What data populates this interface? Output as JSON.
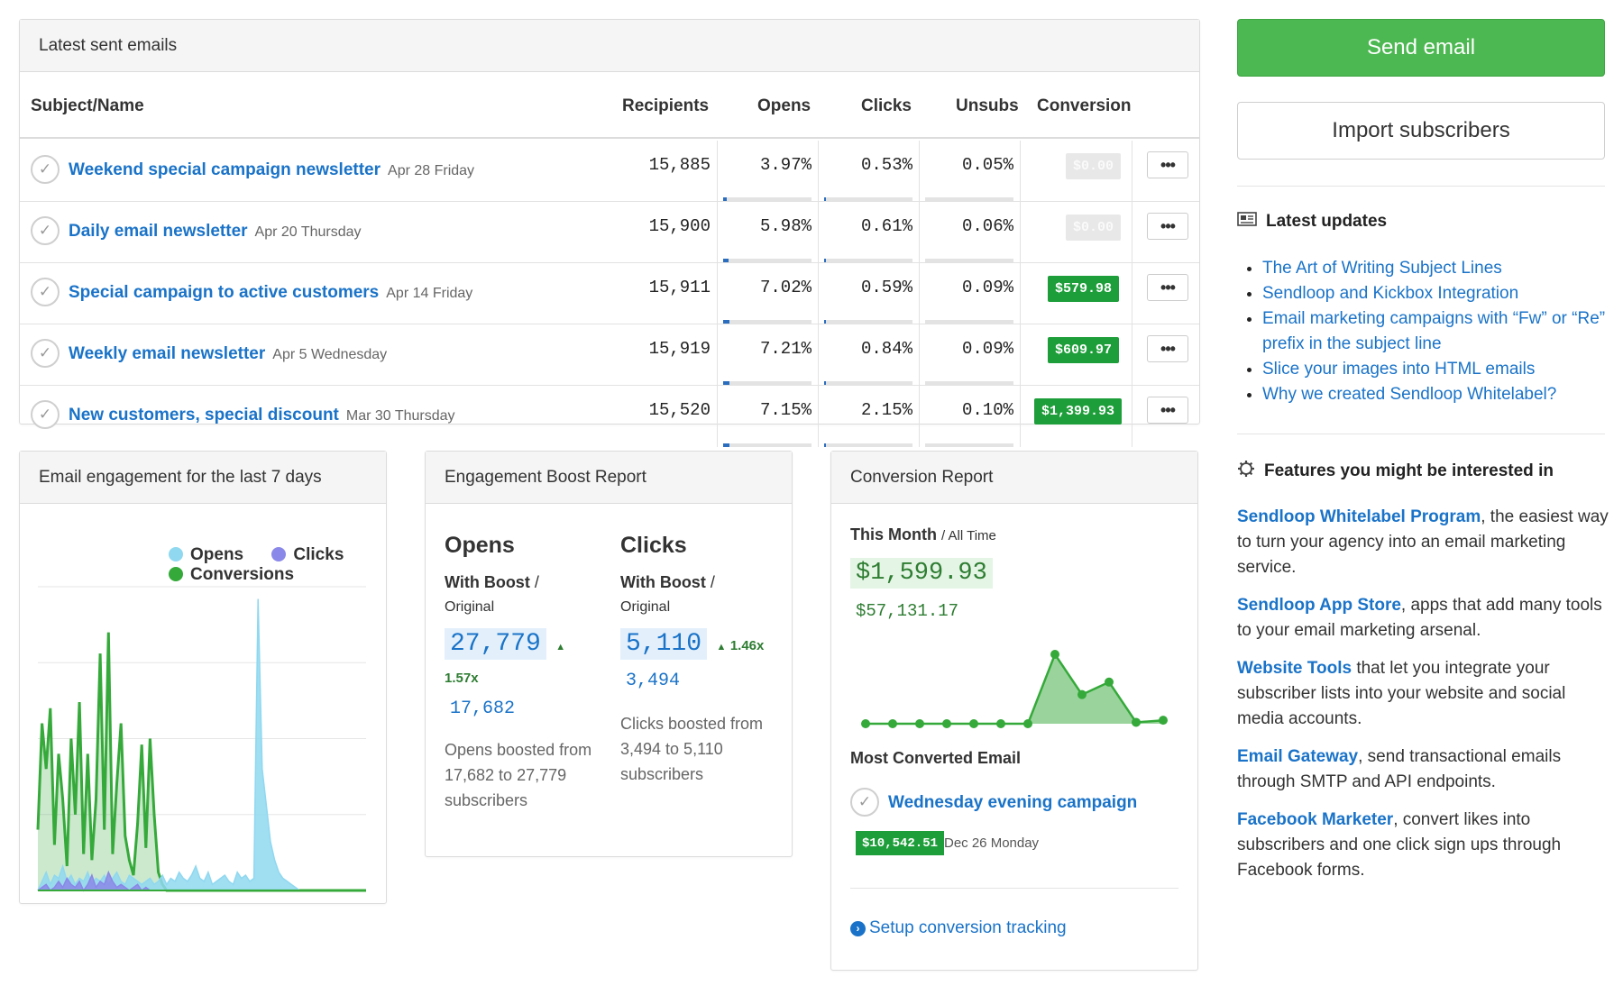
{
  "emails_panel": {
    "title": "Latest sent emails",
    "columns": [
      "Subject/Name",
      "Recipients",
      "Opens",
      "Clicks",
      "Unsubs",
      "Conversion"
    ],
    "rows": [
      {
        "subject": "Weekend special campaign newsletter",
        "date": "Apr 28 Friday",
        "recipients": "15,885",
        "opens": "3.97%",
        "clicks": "0.53%",
        "unsubs": "0.05%",
        "conversion": "$0.00",
        "opens_bar": 0.04,
        "clicks_bar": 0.005,
        "unsubs_bar": 0.0
      },
      {
        "subject": "Daily email newsletter",
        "date": "Apr 20 Thursday",
        "recipients": "15,900",
        "opens": "5.98%",
        "clicks": "0.61%",
        "unsubs": "0.06%",
        "conversion": "$0.00",
        "opens_bar": 0.06,
        "clicks_bar": 0.006,
        "unsubs_bar": 0.0
      },
      {
        "subject": "Special campaign to active customers",
        "date": "Apr 14 Friday",
        "recipients": "15,911",
        "opens": "7.02%",
        "clicks": "0.59%",
        "unsubs": "0.09%",
        "conversion": "$579.98",
        "opens_bar": 0.07,
        "clicks_bar": 0.006,
        "unsubs_bar": 0.0
      },
      {
        "subject": "Weekly email newsletter",
        "date": "Apr 5 Wednesday",
        "recipients": "15,919",
        "opens": "7.21%",
        "clicks": "0.84%",
        "unsubs": "0.09%",
        "conversion": "$609.97",
        "opens_bar": 0.07,
        "clicks_bar": 0.008,
        "unsubs_bar": 0.0
      },
      {
        "subject": "New customers, special discount",
        "date": "Mar 30 Thursday",
        "recipients": "15,520",
        "opens": "7.15%",
        "clicks": "2.15%",
        "unsubs": "0.10%",
        "conversion": "$1,399.93",
        "opens_bar": 0.07,
        "clicks_bar": 0.02,
        "unsubs_bar": 0.0
      }
    ],
    "more_label": "•••",
    "check_glyph": "✓"
  },
  "sidebar": {
    "send_label": "Send email",
    "import_label": "Import subscribers",
    "updates_title": "Latest updates",
    "updates": [
      "The Art of Writing Subject Lines",
      "Sendloop and Kickbox Integration",
      "Email marketing campaigns with “Fw” or “Re” prefix in the subject line",
      "Slice your images into HTML emails",
      "Why we created Sendloop Whitelabel?"
    ],
    "features_title": "Features you might be interested in",
    "features": [
      {
        "name": "Sendloop Whitelabel Program",
        "text": ", the easiest way to turn your agency into an email marketing service."
      },
      {
        "name": "Sendloop App Store",
        "text": ", apps that add many tools to your email marketing arsenal."
      },
      {
        "name": "Website Tools",
        "text": " that let you integrate your subscriber lists into your website and social media accounts."
      },
      {
        "name": "Email Gateway",
        "text": ", send transactional emails through SMTP and API endpoints."
      },
      {
        "name": "Facebook Marketer",
        "text": ", convert likes into subscribers and one click sign ups through Facebook forms."
      }
    ]
  },
  "engagement": {
    "title": "Email engagement for the last 7 days",
    "legend": {
      "opens": "Opens",
      "clicks": "Clicks",
      "conversions": "Conversions"
    },
    "colors": {
      "opens": "#8fd8f0",
      "clicks": "#8a88e8",
      "conversions": "#35a93a"
    }
  },
  "chart_data": {
    "type": "area",
    "series": [
      {
        "name": "Opens",
        "values": [
          0,
          3,
          6,
          2,
          5,
          4,
          8,
          3,
          5,
          2,
          4,
          3,
          6,
          2,
          4,
          3,
          5,
          2,
          4,
          6,
          3,
          2,
          5,
          4,
          3,
          2,
          3,
          4,
          2,
          3,
          5,
          2,
          4,
          3,
          6,
          4,
          3,
          5,
          8,
          4,
          3,
          6,
          2,
          3,
          4,
          5,
          3,
          2,
          6,
          4,
          5,
          3,
          4,
          96,
          40,
          28,
          16,
          10,
          6,
          4,
          3,
          2,
          1,
          0,
          0,
          0,
          0,
          0,
          0,
          0,
          0,
          0,
          0,
          0,
          0,
          0,
          0,
          0,
          0,
          0
        ]
      },
      {
        "name": "Clicks",
        "values": [
          0,
          1,
          2,
          0,
          1,
          3,
          1,
          4,
          2,
          1,
          3,
          0,
          2,
          5,
          1,
          3,
          2,
          6,
          3,
          1,
          2,
          1,
          0,
          1,
          2,
          0,
          1,
          0,
          0,
          0,
          0,
          0,
          0,
          0,
          0,
          0,
          0,
          0,
          0,
          0,
          0,
          0,
          0,
          0,
          0,
          0,
          0,
          0,
          0,
          0,
          0,
          0,
          0,
          0,
          0,
          0,
          0,
          0,
          0,
          0,
          0,
          0,
          0,
          0,
          0,
          0,
          0,
          0,
          0,
          0,
          0,
          0,
          0,
          0,
          0,
          0,
          0,
          0,
          0,
          0
        ]
      },
      {
        "name": "Conversions",
        "values": [
          20,
          55,
          40,
          60,
          15,
          45,
          30,
          8,
          50,
          25,
          62,
          12,
          45,
          10,
          30,
          78,
          20,
          85,
          12,
          35,
          55,
          18,
          10,
          5,
          22,
          48,
          14,
          50,
          25,
          6,
          2,
          0,
          0,
          0,
          0,
          0,
          0,
          0,
          0,
          0,
          0,
          0,
          0,
          0,
          0,
          0,
          0,
          0,
          0,
          0,
          0,
          0,
          0,
          0,
          0,
          0,
          0,
          0,
          0,
          0,
          0,
          0,
          0,
          0,
          0,
          0,
          0,
          0,
          0,
          0,
          0,
          0,
          0,
          0,
          0,
          0,
          0,
          0,
          0,
          0
        ]
      }
    ],
    "ylim": [
      0,
      100
    ]
  },
  "conversion_spark": {
    "values": [
      0,
      0,
      0,
      0,
      0,
      0,
      0,
      1,
      0.42,
      0.6,
      0.02,
      0.05
    ],
    "color": "#35a93a"
  },
  "boost": {
    "title": "Engagement Boost Report",
    "opens": {
      "heading": "Opens",
      "with_boost": "With Boost",
      "original": "Original",
      "big": "27,779",
      "mult": "1.57x",
      "small": "17,682",
      "desc": "Opens boosted from 17,682 to 27,779 subscribers"
    },
    "clicks": {
      "heading": "Clicks",
      "with_boost": "With Boost",
      "original": "Original",
      "big": "5,110",
      "mult": "1.46x",
      "small": "3,494",
      "desc": "Clicks boosted from 3,494 to 5,110 subscribers"
    }
  },
  "conversion": {
    "title": "Conversion Report",
    "this_month": "This Month",
    "all_time": "All Time",
    "month_value": "$1,599.93",
    "all_value": "$57,131.17",
    "most_title": "Most Converted Email",
    "email_name": "Wednesday evening campaign",
    "email_value": "$10,542.51",
    "email_date": "Dec 26 Monday",
    "setup": "Setup conversion tracking"
  }
}
